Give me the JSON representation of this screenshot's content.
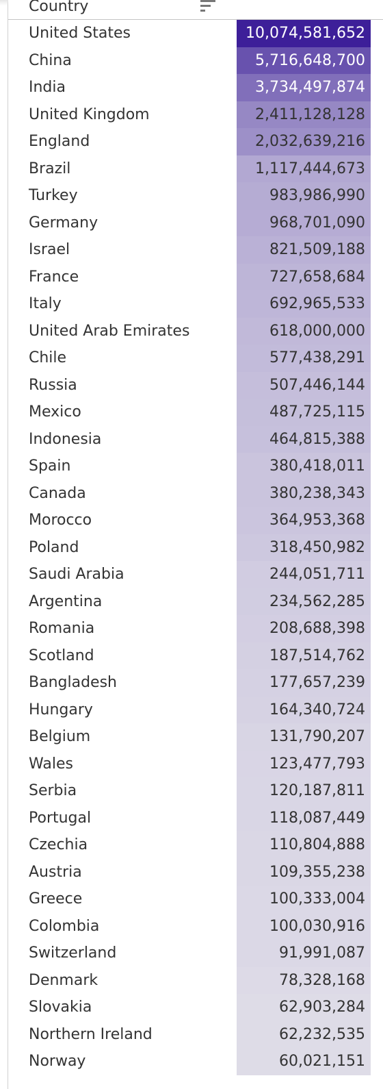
{
  "chart_data": {
    "type": "table",
    "column_header": "Country",
    "colors": {
      "max": "#3d1f99",
      "min": "#ececee",
      "text_dark": "#333333",
      "text_light": "#ffffff"
    },
    "rows": [
      {
        "country": "United States",
        "value": 10074581652,
        "label": "10,074,581,652"
      },
      {
        "country": "China",
        "value": 5716648700,
        "label": "5,716,648,700"
      },
      {
        "country": "India",
        "value": 3734497874,
        "label": "3,734,497,874"
      },
      {
        "country": "United Kingdom",
        "value": 2411128128,
        "label": "2,411,128,128"
      },
      {
        "country": "England",
        "value": 2032639216,
        "label": "2,032,639,216"
      },
      {
        "country": "Brazil",
        "value": 1117444673,
        "label": "1,117,444,673"
      },
      {
        "country": "Turkey",
        "value": 983986990,
        "label": "983,986,990"
      },
      {
        "country": "Germany",
        "value": 968701090,
        "label": "968,701,090"
      },
      {
        "country": "Israel",
        "value": 821509188,
        "label": "821,509,188"
      },
      {
        "country": "France",
        "value": 727658684,
        "label": "727,658,684"
      },
      {
        "country": "Italy",
        "value": 692965533,
        "label": "692,965,533"
      },
      {
        "country": "United Arab Emirates",
        "value": 618000000,
        "label": "618,000,000"
      },
      {
        "country": "Chile",
        "value": 577438291,
        "label": "577,438,291"
      },
      {
        "country": "Russia",
        "value": 507446144,
        "label": "507,446,144"
      },
      {
        "country": "Mexico",
        "value": 487725115,
        "label": "487,725,115"
      },
      {
        "country": "Indonesia",
        "value": 464815388,
        "label": "464,815,388"
      },
      {
        "country": "Spain",
        "value": 380418011,
        "label": "380,418,011"
      },
      {
        "country": "Canada",
        "value": 380238343,
        "label": "380,238,343"
      },
      {
        "country": "Morocco",
        "value": 364953368,
        "label": "364,953,368"
      },
      {
        "country": "Poland",
        "value": 318450982,
        "label": "318,450,982"
      },
      {
        "country": "Saudi Arabia",
        "value": 244051711,
        "label": "244,051,711"
      },
      {
        "country": "Argentina",
        "value": 234562285,
        "label": "234,562,285"
      },
      {
        "country": "Romania",
        "value": 208688398,
        "label": "208,688,398"
      },
      {
        "country": "Scotland",
        "value": 187514762,
        "label": "187,514,762"
      },
      {
        "country": "Bangladesh",
        "value": 177657239,
        "label": "177,657,239"
      },
      {
        "country": "Hungary",
        "value": 164340724,
        "label": "164,340,724"
      },
      {
        "country": "Belgium",
        "value": 131790207,
        "label": "131,790,207"
      },
      {
        "country": "Wales",
        "value": 123477793,
        "label": "123,477,793"
      },
      {
        "country": "Serbia",
        "value": 120187811,
        "label": "120,187,811"
      },
      {
        "country": "Portugal",
        "value": 118087449,
        "label": "118,087,449"
      },
      {
        "country": "Czechia",
        "value": 110804888,
        "label": "110,804,888"
      },
      {
        "country": "Austria",
        "value": 109355238,
        "label": "109,355,238"
      },
      {
        "country": "Greece",
        "value": 100333004,
        "label": "100,333,004"
      },
      {
        "country": "Colombia",
        "value": 100030916,
        "label": "100,030,916"
      },
      {
        "country": "Switzerland",
        "value": 91991087,
        "label": "91,991,087"
      },
      {
        "country": "Denmark",
        "value": 78328168,
        "label": "78,328,168"
      },
      {
        "country": "Slovakia",
        "value": 62903284,
        "label": "62,903,284"
      },
      {
        "country": "Northern Ireland",
        "value": 62232535,
        "label": "62,232,535"
      },
      {
        "country": "Norway",
        "value": 60021151,
        "label": "60,021,151"
      }
    ]
  },
  "header": {
    "sort_icon": "sort-descending-icon"
  }
}
